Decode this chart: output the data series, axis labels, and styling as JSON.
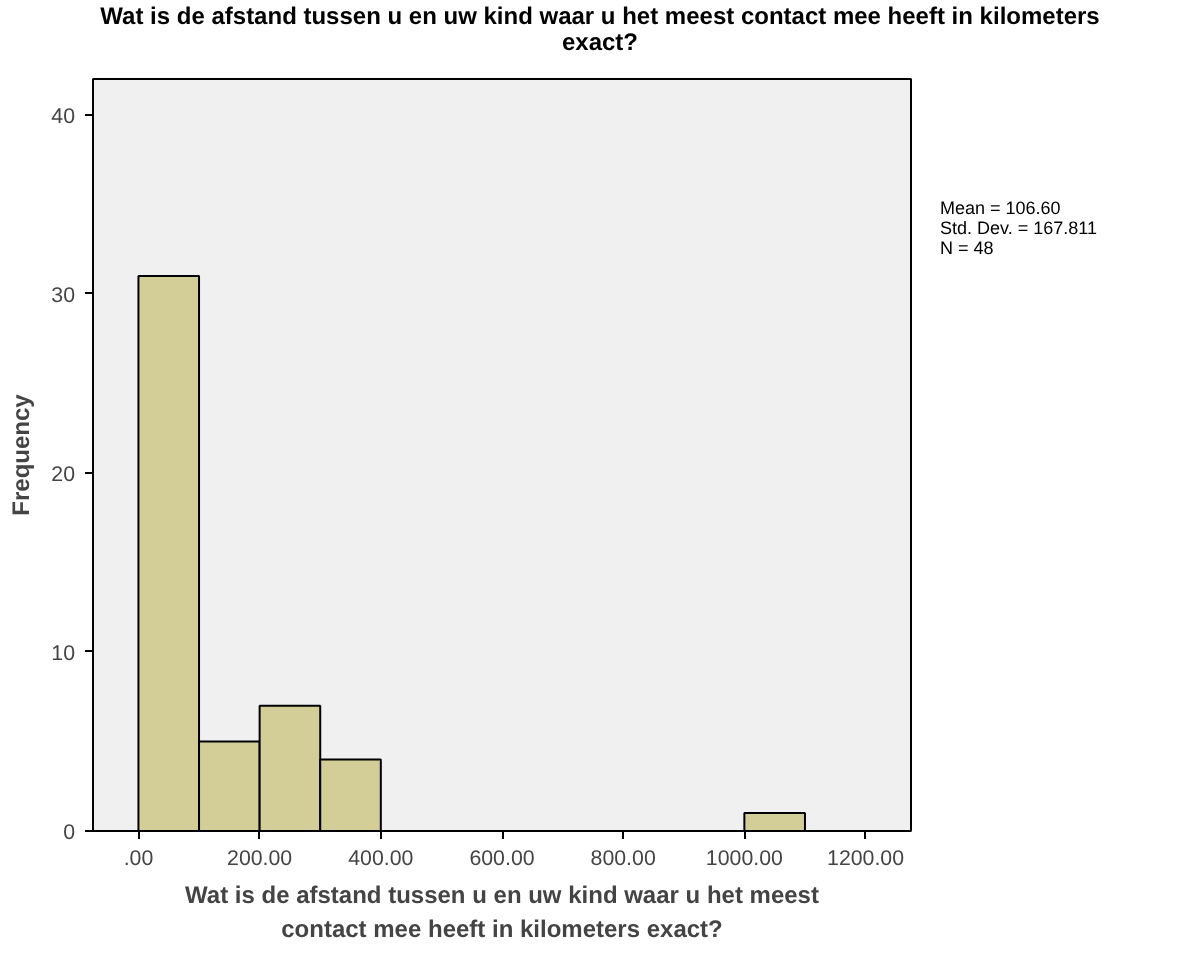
{
  "chart_data": {
    "type": "histogram",
    "title": "Wat is de afstand tussen u en uw kind waar u het meest contact mee heeft in kilometers exact?",
    "xlabel": "Wat is de afstand tussen u en uw kind waar u het meest contact mee heeft in kilometers exact?",
    "ylabel": "Frequency",
    "bins": [
      0,
      100,
      200,
      300,
      400,
      500,
      600,
      700,
      800,
      900,
      1000,
      1100
    ],
    "values": [
      31,
      5,
      7,
      4,
      0,
      0,
      0,
      0,
      0,
      0,
      1
    ],
    "color": "#d3ce97",
    "xlim": [
      -75,
      1275
    ],
    "ylim": [
      0,
      42
    ],
    "xticks": [
      {
        "value": 0,
        "label": ".00"
      },
      {
        "value": 200,
        "label": "200.00"
      },
      {
        "value": 400,
        "label": "400.00"
      },
      {
        "value": 600,
        "label": "600.00"
      },
      {
        "value": 800,
        "label": "800.00"
      },
      {
        "value": 1000,
        "label": "1000.00"
      },
      {
        "value": 1200,
        "label": "1200.00"
      }
    ],
    "yticks": [
      0,
      10,
      20,
      30,
      40
    ],
    "grid": false,
    "annotations": [
      "Mean = 106.60",
      "Std. Dev. = 167.811",
      "N = 48"
    ]
  }
}
